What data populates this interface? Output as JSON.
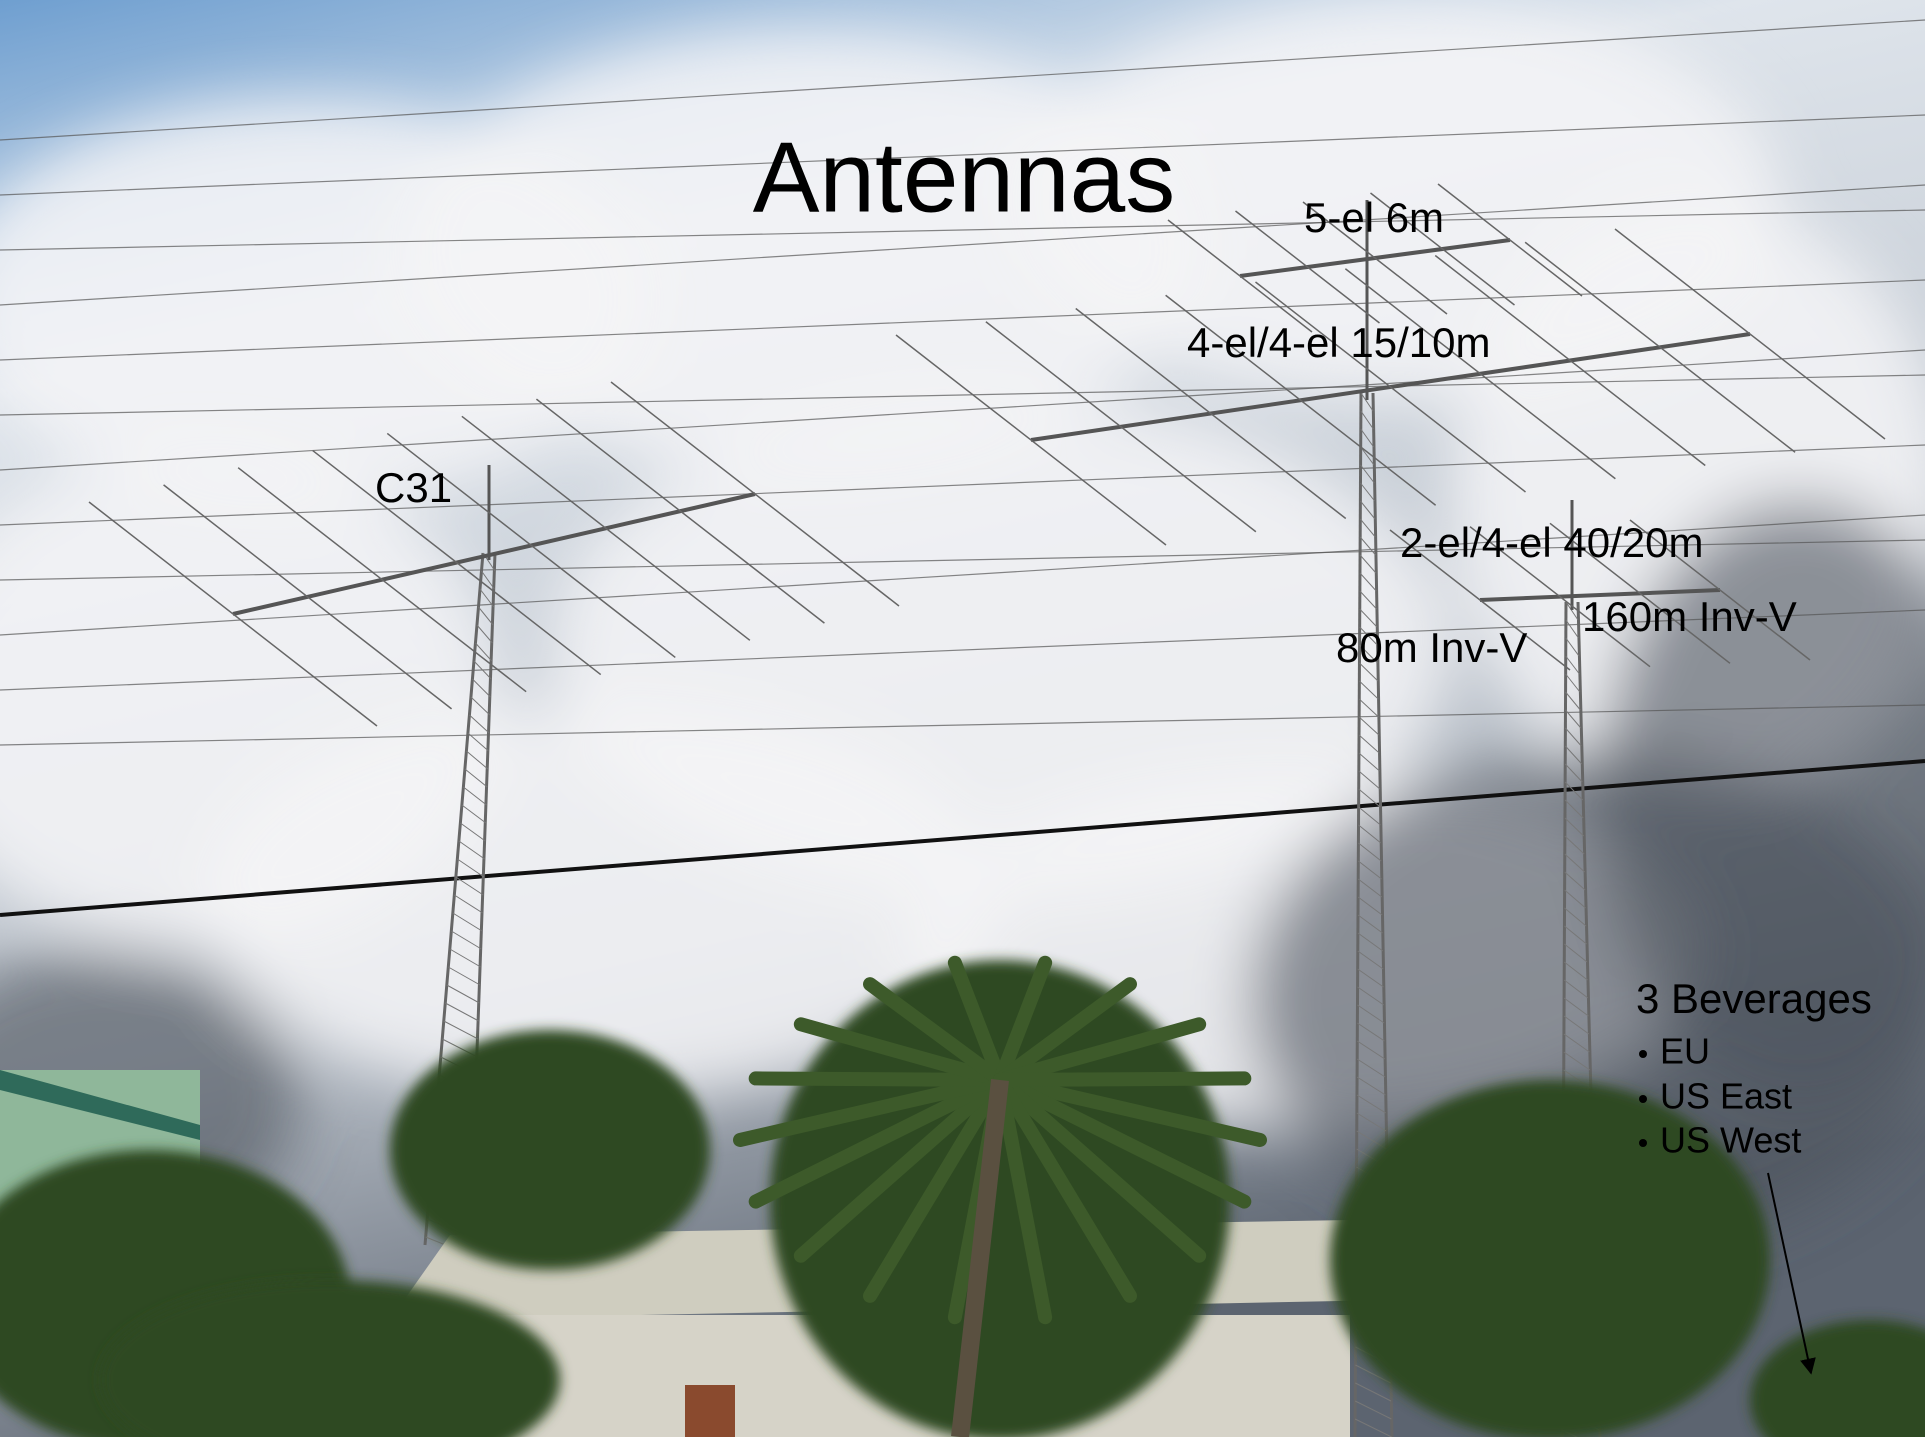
{
  "title": "Antennas",
  "labels": [
    "5-el 6m",
    "4-el/4-el 15/10m",
    "C31",
    "2-el/4-el 40/20m",
    "160m Inv-V",
    "80m Inv-V"
  ],
  "beverages": {
    "heading": "3 Beverages",
    "items": [
      "EU",
      "US East",
      "US West"
    ]
  }
}
